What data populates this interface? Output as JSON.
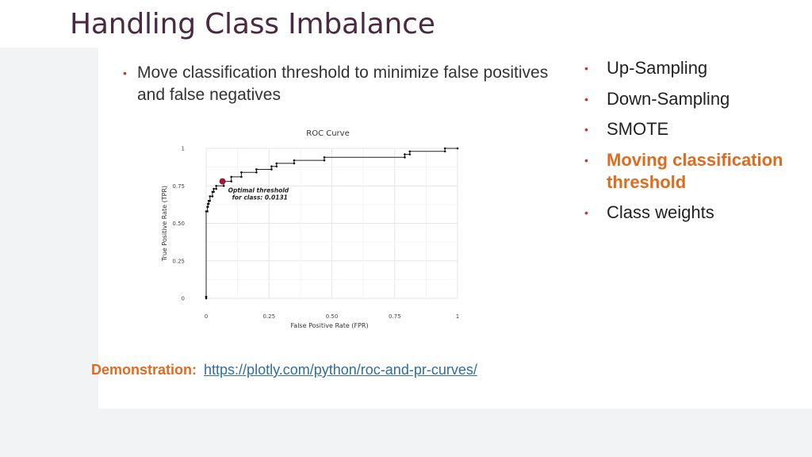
{
  "slide": {
    "title": "Handling Class Imbalance",
    "left_bullet": "Move classification threshold to minimize false positives and false negatives",
    "right_bullets": [
      {
        "text": "Up-Sampling",
        "highlight": false
      },
      {
        "text": "Down-Sampling",
        "highlight": false
      },
      {
        "text": "SMOTE",
        "highlight": false
      },
      {
        "text": "Moving classification threshold",
        "highlight": true
      },
      {
        "text": "Class weights",
        "highlight": false
      }
    ],
    "demo_label": "Demonstration:",
    "demo_link": "https://plotly.com/python/roc-and-pr-curves/"
  },
  "colors": {
    "title": "#4a2a40",
    "bullet_dot": "#c0392b",
    "highlight": "#e06b1f",
    "link": "#2e6da4",
    "optimal_point": "#9b1b30"
  },
  "chart_data": {
    "type": "line",
    "title": "ROC Curve",
    "xlabel": "False Positive Rate (FPR)",
    "ylabel": "True Positive Rate (TPR)",
    "xlim": [
      0,
      1
    ],
    "ylim": [
      0,
      1
    ],
    "xticks": [
      "0",
      "0.25",
      "0.50",
      "0.75",
      "1"
    ],
    "yticks": [
      "0",
      "0.25",
      "0.50",
      "0.75",
      "1"
    ],
    "grid": true,
    "series": [
      {
        "x": [
          0,
          0,
          0,
          0,
          0.005,
          0.005,
          0.007,
          0.007,
          0.01,
          0.01,
          0.015,
          0.015,
          0.025,
          0.025,
          0.03,
          0.03,
          0.04,
          0.04,
          0.07,
          0.07,
          0.1,
          0.1,
          0.14,
          0.14,
          0.2,
          0.2,
          0.26,
          0.26,
          0.28,
          0.28,
          0.35,
          0.35,
          0.47,
          0.47,
          0.79,
          0.79,
          0.81,
          0.81,
          0.95,
          0.95,
          1.0
        ],
        "y": [
          0,
          0.01,
          0.01,
          0.58,
          0.58,
          0.61,
          0.61,
          0.63,
          0.63,
          0.65,
          0.65,
          0.68,
          0.68,
          0.71,
          0.71,
          0.73,
          0.73,
          0.75,
          0.75,
          0.78,
          0.78,
          0.81,
          0.81,
          0.84,
          0.84,
          0.86,
          0.86,
          0.88,
          0.88,
          0.9,
          0.9,
          0.92,
          0.92,
          0.94,
          0.94,
          0.96,
          0.96,
          0.98,
          0.98,
          1.0,
          1.0
        ]
      }
    ],
    "optimal_point": {
      "x": 0.065,
      "y": 0.78
    },
    "annotation": [
      "Optimal threshold",
      "for class: 0.0131"
    ]
  }
}
